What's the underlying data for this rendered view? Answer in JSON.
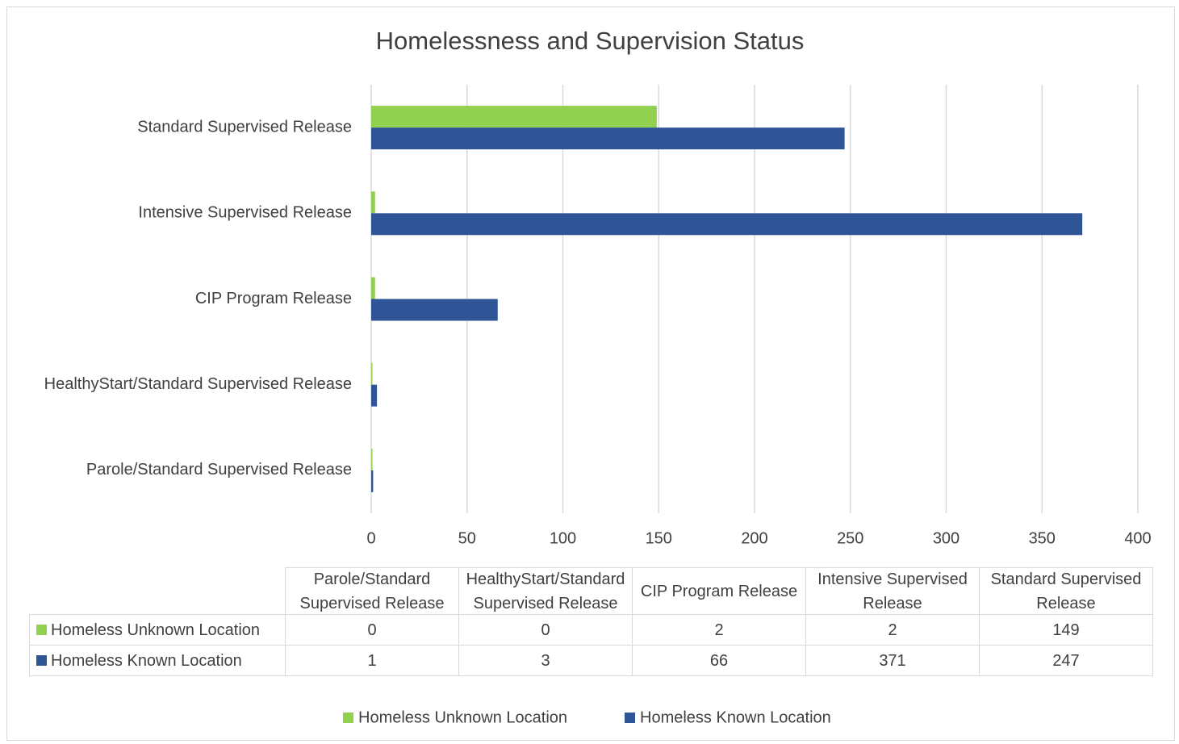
{
  "chart_data": {
    "type": "bar",
    "orientation": "horizontal",
    "title": "Homelessness and Supervision Status",
    "categories": [
      "Parole/Standard Supervised Release",
      "HealthyStart/Standard Supervised Release",
      "CIP Program Release",
      "Intensive Supervised Release",
      "Standard Supervised Release"
    ],
    "series": [
      {
        "name": "Homeless Unknown Location",
        "color": "#92d050",
        "values": [
          0,
          0,
          2,
          2,
          149
        ]
      },
      {
        "name": "Homeless Known Location",
        "color": "#2f5597",
        "values": [
          1,
          3,
          66,
          371,
          247
        ]
      }
    ],
    "xlim": [
      0,
      400
    ],
    "xticks": [
      0,
      50,
      100,
      150,
      200,
      250,
      300,
      350,
      400
    ],
    "grid": true,
    "legend": "bottom",
    "data_table": true
  }
}
